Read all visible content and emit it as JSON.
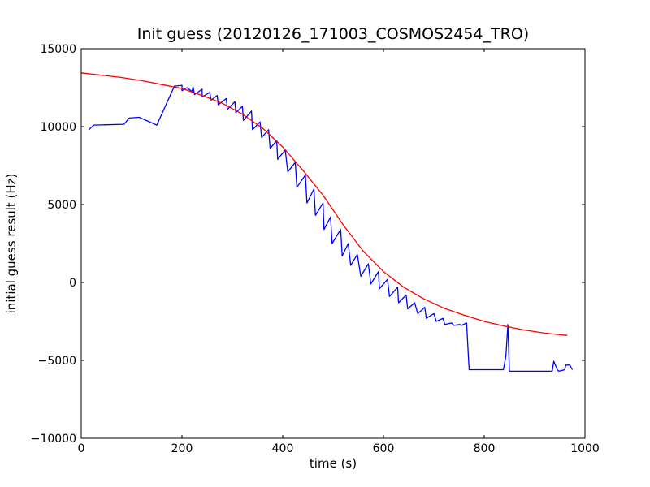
{
  "chart_data": {
    "type": "line",
    "title": "Init guess (20120126_171003_COSMOS2454_TRO)",
    "xlabel": "time (s)",
    "ylabel": "initial guess result (Hz)",
    "xlim": [
      0,
      1000
    ],
    "ylim": [
      -10000,
      15000
    ],
    "xticks": [
      0,
      200,
      400,
      600,
      800,
      1000
    ],
    "yticks": [
      -10000,
      -5000,
      0,
      5000,
      10000,
      15000
    ],
    "xtick_labels": [
      "0",
      "200",
      "400",
      "600",
      "800",
      "1000"
    ],
    "ytick_labels": [
      "−10000",
      "−5000",
      "0",
      "5000",
      "10000",
      "15000"
    ],
    "grid": false,
    "legend": "none",
    "series": [
      {
        "color": "#0000ff",
        "points": [
          [
            15,
            9800
          ],
          [
            25,
            10100
          ],
          [
            85,
            10150
          ],
          [
            95,
            10550
          ],
          [
            115,
            10600
          ],
          [
            150,
            10100
          ],
          [
            185,
            12600
          ],
          [
            200,
            12650
          ],
          [
            200,
            12300
          ],
          [
            210,
            12500
          ],
          [
            220,
            12250
          ],
          [
            222,
            12550
          ],
          [
            225,
            12050
          ],
          [
            240,
            12400
          ],
          [
            240,
            11900
          ],
          [
            255,
            12200
          ],
          [
            258,
            11700
          ],
          [
            270,
            12000
          ],
          [
            272,
            11400
          ],
          [
            288,
            11800
          ],
          [
            290,
            11100
          ],
          [
            305,
            11600
          ],
          [
            307,
            10900
          ],
          [
            320,
            11300
          ],
          [
            322,
            10400
          ],
          [
            338,
            11000
          ],
          [
            340,
            9800
          ],
          [
            355,
            10300
          ],
          [
            358,
            9300
          ],
          [
            372,
            9800
          ],
          [
            375,
            8600
          ],
          [
            388,
            9100
          ],
          [
            390,
            7900
          ],
          [
            405,
            8500
          ],
          [
            410,
            7100
          ],
          [
            425,
            7700
          ],
          [
            428,
            6100
          ],
          [
            445,
            6900
          ],
          [
            448,
            5100
          ],
          [
            462,
            6000
          ],
          [
            465,
            4300
          ],
          [
            480,
            5100
          ],
          [
            482,
            3400
          ],
          [
            495,
            4200
          ],
          [
            498,
            2500
          ],
          [
            515,
            3400
          ],
          [
            518,
            1700
          ],
          [
            530,
            2500
          ],
          [
            535,
            1100
          ],
          [
            548,
            1800
          ],
          [
            555,
            400
          ],
          [
            570,
            1200
          ],
          [
            575,
            -100
          ],
          [
            590,
            700
          ],
          [
            592,
            -400
          ],
          [
            608,
            200
          ],
          [
            612,
            -900
          ],
          [
            628,
            -300
          ],
          [
            630,
            -1300
          ],
          [
            645,
            -800
          ],
          [
            648,
            -1700
          ],
          [
            662,
            -1300
          ],
          [
            668,
            -2000
          ],
          [
            682,
            -1600
          ],
          [
            685,
            -2300
          ],
          [
            700,
            -2000
          ],
          [
            705,
            -2500
          ],
          [
            718,
            -2300
          ],
          [
            722,
            -2700
          ],
          [
            735,
            -2600
          ],
          [
            740,
            -2750
          ],
          [
            752,
            -2700
          ],
          [
            755,
            -2750
          ],
          [
            765,
            -2600
          ],
          [
            770,
            -5600
          ],
          [
            838,
            -5600
          ],
          [
            843,
            -4700
          ],
          [
            847,
            -2700
          ],
          [
            850,
            -5700
          ],
          [
            895,
            -5700
          ],
          [
            935,
            -5700
          ],
          [
            938,
            -5050
          ],
          [
            945,
            -5600
          ],
          [
            948,
            -5700
          ],
          [
            960,
            -5600
          ],
          [
            962,
            -5300
          ],
          [
            970,
            -5300
          ],
          [
            975,
            -5600
          ]
        ]
      },
      {
        "color": "#ff0000",
        "points": [
          [
            0,
            13450
          ],
          [
            40,
            13300
          ],
          [
            80,
            13150
          ],
          [
            120,
            12950
          ],
          [
            160,
            12700
          ],
          [
            200,
            12450
          ],
          [
            240,
            12000
          ],
          [
            280,
            11500
          ],
          [
            320,
            10800
          ],
          [
            360,
            9900
          ],
          [
            400,
            8700
          ],
          [
            440,
            7200
          ],
          [
            480,
            5600
          ],
          [
            520,
            3700
          ],
          [
            560,
            2000
          ],
          [
            600,
            700
          ],
          [
            640,
            -300
          ],
          [
            680,
            -1050
          ],
          [
            720,
            -1650
          ],
          [
            760,
            -2100
          ],
          [
            800,
            -2500
          ],
          [
            840,
            -2800
          ],
          [
            880,
            -3050
          ],
          [
            920,
            -3250
          ],
          [
            965,
            -3400
          ]
        ]
      }
    ]
  }
}
